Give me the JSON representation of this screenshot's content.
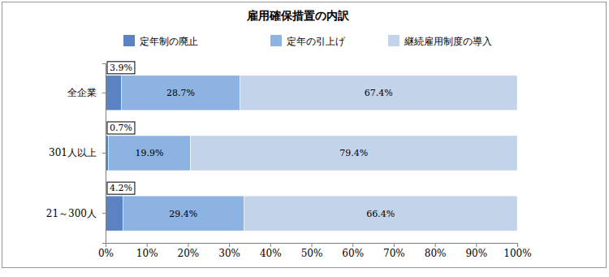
{
  "chart_data": {
    "type": "bar",
    "title": "雇用確保措置の内訳",
    "orientation": "horizontal",
    "stacked": true,
    "data_labels": true,
    "legend": "top",
    "grid": false,
    "categories": [
      "全企業",
      "301人以上",
      "21～300人"
    ],
    "series": [
      {
        "name": "定年制の廃止",
        "color": "#5b82c2",
        "values": [
          3.9,
          0.7,
          4.2
        ],
        "value_labels": [
          "3.9%",
          "0.7%",
          "4.2%"
        ]
      },
      {
        "name": "定年の引上げ",
        "color": "#8db3e2",
        "values": [
          28.7,
          19.9,
          29.4
        ],
        "value_labels": [
          "28.7%",
          "19.9%",
          "29.4%"
        ]
      },
      {
        "name": "継続雇用制度の導入",
        "color": "#c3d3ea",
        "values": [
          67.4,
          79.4,
          66.4
        ],
        "value_labels": [
          "67.4%",
          "79.4%",
          "66.4%"
        ]
      }
    ],
    "xlim": [
      0,
      100
    ],
    "xticks": [
      {
        "value": 0,
        "label": "0%"
      },
      {
        "value": 10,
        "label": "10%"
      },
      {
        "value": 20,
        "label": "20%"
      },
      {
        "value": 30,
        "label": "30%"
      },
      {
        "value": 40,
        "label": "40%"
      },
      {
        "value": 50,
        "label": "50%"
      },
      {
        "value": 60,
        "label": "60%"
      },
      {
        "value": 70,
        "label": "70%"
      },
      {
        "value": 80,
        "label": "80%"
      },
      {
        "value": 90,
        "label": "90%"
      },
      {
        "value": 100,
        "label": "100%"
      }
    ]
  }
}
